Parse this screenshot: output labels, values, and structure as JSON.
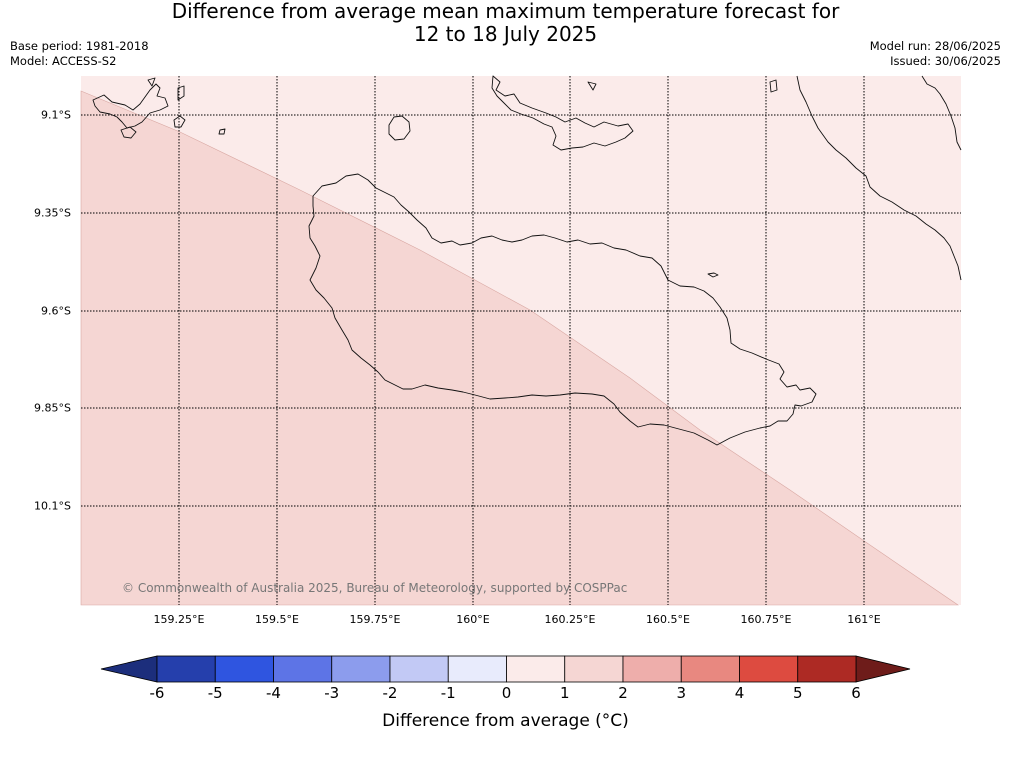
{
  "title": {
    "line1": "Difference from average mean maximum temperature forecast for",
    "line2": "12 to 18 July 2025"
  },
  "meta_left": {
    "base_period": "Base period: 1981-2018",
    "model": "Model: ACCESS-S2"
  },
  "meta_right": {
    "model_run": "Model run: 28/06/2025",
    "issued": "Issued: 30/06/2025"
  },
  "copyright": "© Commonwealth of Australia 2025, Bureau of Meteorology, supported by COSPPac",
  "map": {
    "lat_labels": [
      "9.1°S",
      "9.35°S",
      "9.6°S",
      "9.85°S",
      "10.1°S"
    ],
    "lon_labels": [
      "159.25°E",
      "159.5°E",
      "159.75°E",
      "160°E",
      "160.25°E",
      "160.5°E",
      "160.75°E",
      "161°E"
    ],
    "shaded_regions": [
      {
        "range": "1 to 2",
        "color": "#f5d6d3"
      },
      {
        "range": "0 to 1",
        "color": "#fbebea"
      }
    ]
  },
  "colorbar": {
    "ticks": [
      "-6",
      "-5",
      "-4",
      "-3",
      "-2",
      "-1",
      "0",
      "1",
      "2",
      "3",
      "4",
      "5",
      "6"
    ],
    "under_color": "#1c2e7c",
    "over_color": "#6e1c1a",
    "colors": [
      "#253fac",
      "#2f55e0",
      "#5d74e6",
      "#8c9ced",
      "#c2c9f5",
      "#e8ebfc",
      "#fbebea",
      "#f5d6d3",
      "#eeaeab",
      "#e88880",
      "#dd4b40",
      "#ad2a24"
    ],
    "label": "Difference from average (°C)"
  }
}
